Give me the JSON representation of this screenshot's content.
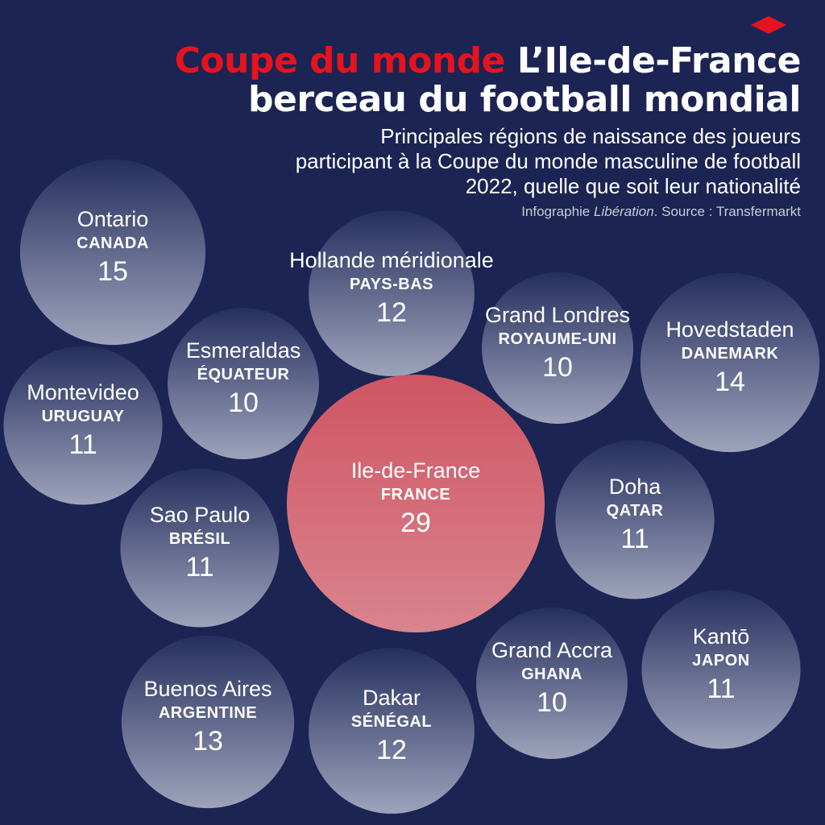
{
  "header": {
    "title_accent": "Coupe du monde",
    "title_line1": "L’Ile-de-France",
    "title_line2": "berceau du football mondial",
    "subtitle_line1": "Principales régions de naissance des joueurs",
    "subtitle_line2": "participant à la Coupe du monde masculine de football",
    "subtitle_line3": "2022, quelle que soit leur nationalité",
    "credit_prefix": "Infographie ",
    "credit_brand": "Libération",
    "credit_suffix": ". Source : Transfermarkt"
  },
  "colors": {
    "background": "#1b2452",
    "accent": "#e5131d",
    "bubble_top": "#252f5e",
    "bubble_bottom": "#9ea3bb",
    "highlight_top": "#cf5562",
    "highlight_bottom": "#d9848e"
  },
  "chart_data": {
    "type": "bubble",
    "title": "L’Ile-de-France berceau du football mondial",
    "value_unit": "joueurs",
    "points": [
      {
        "region": "Ontario",
        "country": "CANADA",
        "value": 15
      },
      {
        "region": "Hollande méridionale",
        "country": "PAYS-BAS",
        "value": 12
      },
      {
        "region": "Grand Londres",
        "country": "ROYAUME-UNI",
        "value": 10
      },
      {
        "region": "Hovedstaden",
        "country": "DANEMARK",
        "value": 14
      },
      {
        "region": "Esmeraldas",
        "country": "ÉQUATEUR",
        "value": 10
      },
      {
        "region": "Montevideo",
        "country": "URUGUAY",
        "value": 11
      },
      {
        "region": "Ile-de-France",
        "country": "FRANCE",
        "value": 29,
        "highlight": true
      },
      {
        "region": "Doha",
        "country": "QATAR",
        "value": 11
      },
      {
        "region": "Sao Paulo",
        "country": "BRÉSIL",
        "value": 11
      },
      {
        "region": "Kantō",
        "country": "JAPON",
        "value": 11
      },
      {
        "region": "Grand Accra",
        "country": "GHANA",
        "value": 10
      },
      {
        "region": "Buenos Aires",
        "country": "ARGENTINE",
        "value": 13
      },
      {
        "region": "Dakar",
        "country": "SÉNÉGAL",
        "value": 12
      }
    ]
  }
}
